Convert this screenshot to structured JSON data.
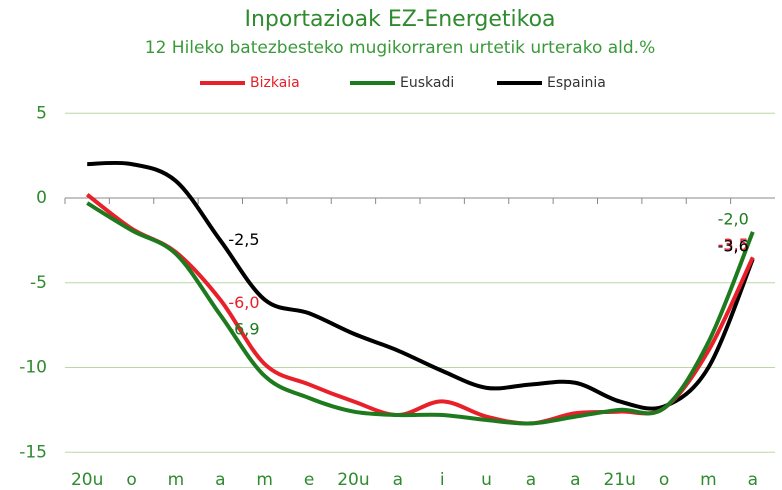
{
  "chart_data": {
    "type": "line",
    "title": "Inportazioak EZ-Energetikoa",
    "subtitle": "12 Hileko batezbesteko mugikorraren urtetik urterako ald.%",
    "categories": [
      "20u",
      "o",
      "m",
      "a",
      "m",
      "e",
      "20u",
      "a",
      "i",
      "u",
      "a",
      "a",
      "21u",
      "o",
      "m",
      "a"
    ],
    "series": [
      {
        "name": "Bizkaia",
        "color": "#e8202a",
        "values": [
          0.2,
          -1.8,
          -3.2,
          -6.0,
          -9.8,
          -11.0,
          -12.0,
          -12.8,
          -12.0,
          -12.9,
          -13.3,
          -12.7,
          -12.6,
          -12.4,
          -9.0,
          -3.5
        ],
        "value_labels": [
          null,
          null,
          null,
          "-6,0",
          null,
          null,
          null,
          null,
          null,
          null,
          null,
          null,
          null,
          null,
          null,
          "-3,5"
        ]
      },
      {
        "name": "Euskadi",
        "color": "#1e7a1e",
        "values": [
          -0.3,
          -1.9,
          -3.3,
          -6.9,
          -10.5,
          -11.8,
          -12.6,
          -12.8,
          -12.8,
          -13.1,
          -13.3,
          -12.9,
          -12.5,
          -12.4,
          -8.5,
          -2.0
        ],
        "value_labels": [
          null,
          null,
          null,
          "-6,9",
          null,
          null,
          null,
          null,
          null,
          null,
          null,
          null,
          null,
          null,
          null,
          "-2,0"
        ]
      },
      {
        "name": "Espainia",
        "color": "#000000",
        "values": [
          2.0,
          2.0,
          1.0,
          -2.5,
          -6.0,
          -6.8,
          -8.0,
          -9.0,
          -10.2,
          -11.2,
          -11.0,
          -10.9,
          -12.0,
          -12.3,
          -10.0,
          -3.6
        ],
        "value_labels": [
          null,
          null,
          null,
          "-2,5",
          null,
          null,
          null,
          null,
          null,
          null,
          null,
          null,
          null,
          null,
          null,
          "-3,6"
        ]
      }
    ],
    "ylim": [
      -16,
      5
    ],
    "yticks": [
      5,
      0,
      -5,
      -10,
      -15
    ],
    "grid": true,
    "legend": "top"
  }
}
